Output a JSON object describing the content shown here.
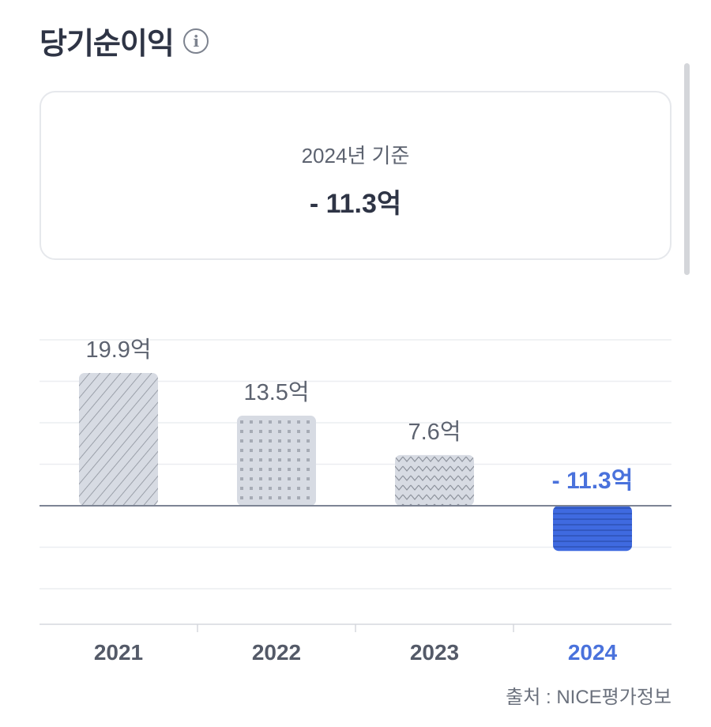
{
  "header": {
    "title": "당기순이익",
    "info_icon": "info-circle-icon"
  },
  "summary": {
    "basis": "2024년 기준",
    "value": "- 11.3억"
  },
  "chart_data": {
    "type": "bar",
    "categories": [
      "2021",
      "2022",
      "2023",
      "2024"
    ],
    "values": [
      19.9,
      13.5,
      7.6,
      -11.3
    ],
    "value_labels": [
      "19.9억",
      "13.5억",
      "7.6억",
      "- 11.3억"
    ],
    "unit": "억",
    "grid": true,
    "highlight_index": 3,
    "colors": {
      "neutral_fill": "#d7dbe3",
      "neutral_pattern": "#8c919b",
      "highlight": "#3f6ae0",
      "highlight_text": "#4a72dc",
      "label": "#5d6370",
      "axis_label": "#545a68"
    }
  },
  "footer": {
    "source": "출처 : NICE평가정보"
  }
}
